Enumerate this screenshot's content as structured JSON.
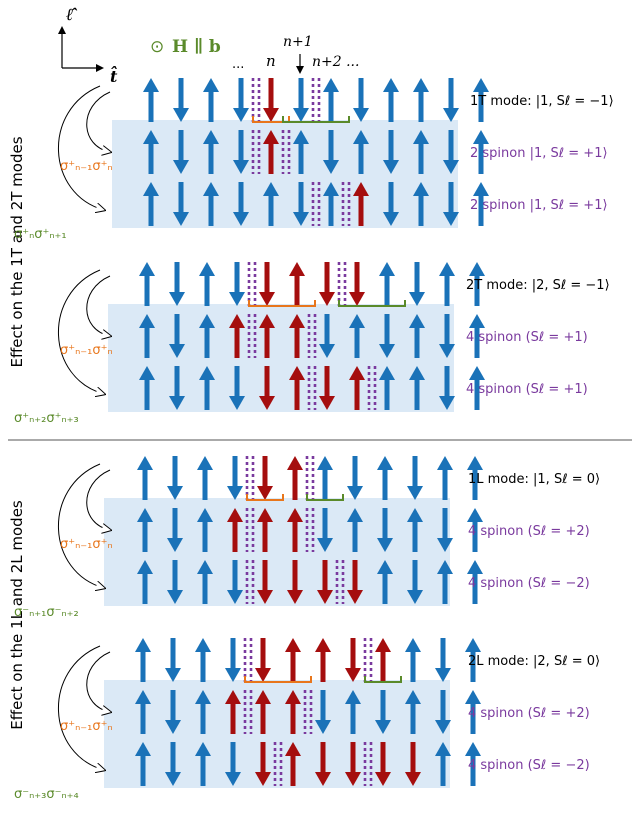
{
  "axes": {
    "vertical_symbol": "ℓ̂",
    "horizontal_symbol": "t̂",
    "field_symbol": "⊙",
    "field_label": "H ∥ b"
  },
  "site_labels": {
    "dots_left": "...",
    "n": "n",
    "n_plus_1": "n+1",
    "n_plus_2": "n+2 ..."
  },
  "section_titles": {
    "transverse": "Effect on the 1T and 2T modes",
    "longitudinal": "Effect on the 1L and 2L modes"
  },
  "operators": {
    "t1_inner": "σ⁺ₙ₋₁σ⁺ₙ",
    "t1_outer": "σ⁺ₙσ⁺ₙ₊₁",
    "t2_inner": "σ⁺ₙ₋₁σ⁺ₙ",
    "t2_outer": "σ⁺ₙ₊₂σ⁺ₙ₊₃",
    "l1_inner": "σ⁺ₙ₋₁σ⁺ₙ",
    "l1_outer": "σ⁻ₙ₊₁σ⁻ₙ₊₂",
    "l2_inner": "σ⁺ₙ₋₁σ⁺ₙ",
    "l2_outer": "σ⁻ₙ₊₃σ⁻ₙ₊₄"
  },
  "rows": {
    "t1_mode": "1T mode: |1, Sℓ = −1⟩",
    "t1_a": "2 spinon |1, Sℓ = +1⟩",
    "t1_b": "2 spinon |1, Sℓ = +1⟩",
    "t2_mode": "2T mode: |2, Sℓ = −1⟩",
    "t2_a": "4 spinon (Sℓ = +1)",
    "t2_b": "4 spinon (Sℓ = +1)",
    "l1_mode": "1L mode: |1, Sℓ = 0⟩",
    "l1_a": "4 spinon (Sℓ = +2)",
    "l1_b": "4 spinon (Sℓ = −2)",
    "l2_mode": "2L mode: |2, Sℓ = 0⟩",
    "l2_a": "4 spinon (Sℓ = +2)",
    "l2_b": "4 spinon (Sℓ = −2)"
  },
  "colors": {
    "blue_spin": "#1a72b8",
    "red_spin": "#a50e0e",
    "domain_wall": "#7a3a9e",
    "orange_bracket": "#e8761c",
    "green_bracket": "#5a8a2a",
    "band": "#dbe9f6",
    "mode_text": "#000000",
    "spinon_text": "#7a3a9e"
  },
  "panels": [
    {
      "mode_key": "t1_mode",
      "rows": [
        {
          "key": "t1_mode",
          "spins": "UDUDDDUDUUDU",
          "colors": "BBBBRBBBBBBB",
          "walls": [
            4,
            6
          ]
        },
        {
          "key": "t1_a",
          "spins": "UDUDUUDUDUDU",
          "colors": "BBBBRBBBBBBB",
          "walls": [
            4,
            5
          ]
        },
        {
          "key": "t1_b",
          "spins": "UDUDUDUUDUDU",
          "colors": "BBBBBBBRBBBB",
          "walls": [
            6,
            7
          ]
        }
      ],
      "brackets": [
        {
          "color": "orange",
          "from": 4,
          "to": 5
        },
        {
          "color": "green",
          "from": 5,
          "to": 7
        }
      ],
      "inner_op": "t1_inner",
      "outer_op": "t1_outer"
    },
    {
      "mode_key": "t2_mode",
      "rows": [
        {
          "key": "t2_mode",
          "spins": "UDUDDUDDUDUU",
          "colors": "BBBBRRRRBBBB",
          "walls": [
            4,
            7
          ]
        },
        {
          "key": "t2_a",
          "spins": "UDUUUUDUDUDU",
          "colors": "BBBRRRBBBBBB",
          "walls": [
            4,
            6
          ]
        },
        {
          "key": "t2_b",
          "spins": "UDUDDUDUUUDU",
          "colors": "BBBBRRRRBBBB",
          "walls": [
            6,
            8
          ]
        }
      ],
      "brackets": [
        {
          "color": "orange",
          "from": 4,
          "to": 6
        },
        {
          "color": "green",
          "from": 7,
          "to": 9
        }
      ],
      "inner_op": "t2_inner",
      "outer_op": "t2_outer"
    },
    {
      "mode_key": "l1_mode",
      "rows": [
        {
          "key": "l1_mode",
          "spins": "UDUDDUUDUDUU",
          "colors": "BBBBRRBBBBBB",
          "walls": [
            4,
            6
          ]
        },
        {
          "key": "l1_a",
          "spins": "UDUUUUDUDUDU",
          "colors": "BBBRRRBBBBBB",
          "walls": [
            4,
            6
          ]
        },
        {
          "key": "l1_b",
          "spins": "UDUDDDDDUDUU",
          "colors": "BBBBRRRRBBBB",
          "walls": [
            4,
            7
          ]
        }
      ],
      "brackets": [
        {
          "color": "orange",
          "from": 4,
          "to": 5
        },
        {
          "color": "green",
          "from": 6,
          "to": 7
        }
      ],
      "inner_op": "l1_inner",
      "outer_op": "l1_outer"
    },
    {
      "mode_key": "l2_mode",
      "rows": [
        {
          "key": "l2_mode",
          "spins": "UDUDDUUDUUDU",
          "colors": "BBBBRRRRRBBB",
          "walls": [
            4,
            8
          ]
        },
        {
          "key": "l2_a",
          "spins": "UDUUUUDUDUDU",
          "colors": "BBBRRRBBBBBB",
          "walls": [
            4,
            6
          ]
        },
        {
          "key": "l2_b",
          "spins": "UDUDDUDDDDUU",
          "colors": "BBBBRRRRRRBB",
          "walls": [
            5,
            8
          ]
        }
      ],
      "brackets": [
        {
          "color": "orange",
          "from": 4,
          "to": 6
        },
        {
          "color": "green",
          "from": 8,
          "to": 9
        }
      ],
      "inner_op": "l2_inner",
      "outer_op": "l2_outer"
    }
  ]
}
